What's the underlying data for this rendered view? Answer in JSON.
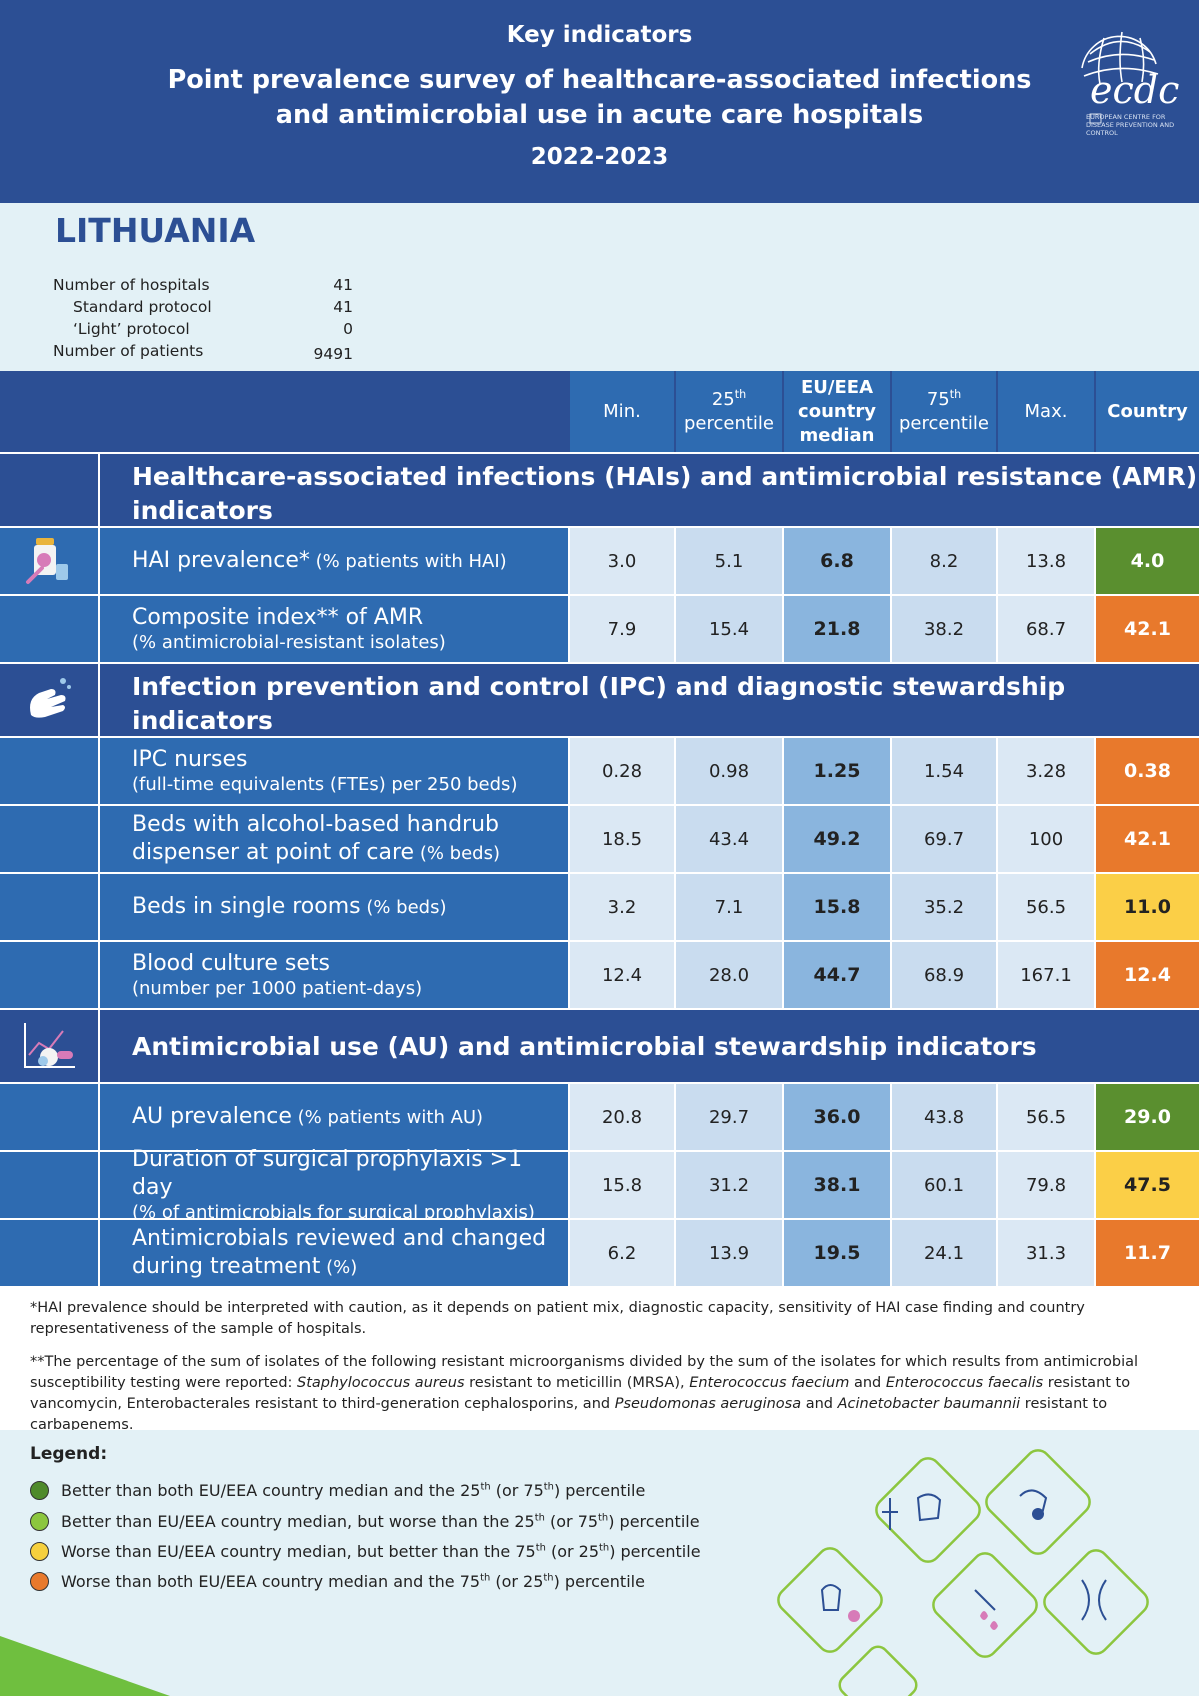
{
  "header": {
    "kicker": "Key indicators",
    "title_line1": "Point prevalence survey of healthcare-associated infections",
    "title_line2": "and antimicrobial use in acute care hospitals",
    "years": "2022-2023",
    "logo_text": "ecdc",
    "logo_sub": "EUROPEAN CENTRE FOR DISEASE PREVENTION AND CONTROL"
  },
  "country": {
    "name": "LITHUANIA",
    "stats": [
      {
        "label": "Number of hospitals",
        "value": "41"
      },
      {
        "label": "Standard protocol",
        "value": "41"
      },
      {
        "label": "‘Light’ protocol",
        "value": "0"
      },
      {
        "label": "Number of patients",
        "value": "9491"
      }
    ]
  },
  "table_header": {
    "min": "Min.",
    "p25_num": "25",
    "p25_sup": "th",
    "p25_word": "percentile",
    "median": "EU/EEA country median",
    "p75_num": "75",
    "p75_sup": "th",
    "p75_word": "percentile",
    "max": "Max.",
    "country": "Country"
  },
  "sections": {
    "hai": "Healthcare-associated infections (HAIs) and antimicrobial resistance (AMR) indicators",
    "ipc": "Infection prevention and control (IPC) and diagnostic stewardship indicators",
    "au": "Antimicrobial use (AU) and antimicrobial stewardship indicators"
  },
  "rows": {
    "hai_prev": {
      "label": "HAI prevalence*",
      "unit": " (% patients with HAI)",
      "min": "3.0",
      "p25": "5.1",
      "median": "6.8",
      "p75": "8.2",
      "max": "13.8",
      "country": "4.0",
      "status": "better-both"
    },
    "amr": {
      "label": "Composite index** of AMR",
      "unit": "(% antimicrobial-resistant isolates)",
      "min": "7.9",
      "p25": "15.4",
      "median": "21.8",
      "p75": "38.2",
      "max": "68.7",
      "country": "42.1",
      "status": "worse-both"
    },
    "ipc_nurses": {
      "label": "IPC nurses",
      "unit": "(full-time equivalents (FTEs) per 250 beds)",
      "min": "0.28",
      "p25": "0.98",
      "median": "1.25",
      "p75": "1.54",
      "max": "3.28",
      "country": "0.38",
      "status": "worse-both"
    },
    "handrub": {
      "label": "Beds with alcohol-based handrub",
      "label2": "dispenser at point of care",
      "unit": " (% beds)",
      "min": "18.5",
      "p25": "43.4",
      "median": "49.2",
      "p75": "69.7",
      "max": "100",
      "country": "42.1",
      "status": "worse-both"
    },
    "single_rooms": {
      "label": "Beds in single rooms",
      "unit": " (% beds)",
      "min": "3.2",
      "p25": "7.1",
      "median": "15.8",
      "p75": "35.2",
      "max": "56.5",
      "country": "11.0",
      "status": "worse-median"
    },
    "blood_culture": {
      "label": "Blood culture sets",
      "unit": "(number per 1000 patient-days)",
      "min": "12.4",
      "p25": "28.0",
      "median": "44.7",
      "p75": "68.9",
      "max": "167.1",
      "country": "12.4",
      "status": "worse-both"
    },
    "au_prev": {
      "label": "AU prevalence",
      "unit": " (% patients with AU)",
      "min": "20.8",
      "p25": "29.7",
      "median": "36.0",
      "p75": "43.8",
      "max": "56.5",
      "country": "29.0",
      "status": "better-both"
    },
    "surg_proph": {
      "label": "Duration of surgical prophylaxis >1 day",
      "unit": "(% of antimicrobials for surgical prophylaxis)",
      "min": "15.8",
      "p25": "31.2",
      "median": "38.1",
      "p75": "60.1",
      "max": "79.8",
      "country": "47.5",
      "status": "worse-median"
    },
    "reviewed": {
      "label": "Antimicrobials reviewed and changed",
      "label2": "during treatment",
      "unit": " (%)",
      "min": "6.2",
      "p25": "13.9",
      "median": "19.5",
      "p75": "24.1",
      "max": "31.3",
      "country": "11.7",
      "status": "worse-both"
    }
  },
  "footnotes": {
    "note1": "*HAI prevalence should be interpreted with caution, as it depends on patient mix, diagnostic capacity, sensitivity of HAI case finding and country representativeness of the sample of hospitals.",
    "note2_a": "**The percentage of the sum of isolates of the following resistant microorganisms divided by the sum of the isolates for which results from antimicrobial susceptibility testing were reported: ",
    "note2_i1": "Staphylococcus aureus",
    "note2_b": " resistant to meticillin (MRSA), ",
    "note2_i2": "Enterococcus faecium",
    "note2_c": " and ",
    "note2_i3": "Enterococcus faecalis",
    "note2_d": " resistant to vancomycin, Enterobacterales resistant to third-generation cephalosporins, and ",
    "note2_i4": "Pseudomonas aeruginosa",
    "note2_e": " and ",
    "note2_i5": "Acinetobacter baumannii",
    "note2_f": " resistant to carbapenems."
  },
  "legend": {
    "title": "Legend:",
    "items": [
      {
        "a": "Better than both EU/EEA country median and the 25",
        "s1": "th",
        "b": " (or 75",
        "s2": "th",
        "c": ") percentile",
        "color": "#4f8a2b"
      },
      {
        "a": "Better than EU/EEA country median, but worse than the 25",
        "s1": "th",
        "b": " (or 75",
        "s2": "th",
        "c": ") percentile",
        "color": "#8cc63f"
      },
      {
        "a": "Worse than EU/EEA country median, but better than the 75",
        "s1": "th",
        "b": " (or 25",
        "s2": "th",
        "c": ") percentile",
        "color": "#f6d03e"
      },
      {
        "a": "Worse than both EU/EEA country median and the 75",
        "s1": "th",
        "b": " (or 25",
        "s2": "th",
        "c": ") percentile",
        "color": "#e8792c"
      }
    ]
  },
  "colors": {
    "header_blue": "#2c4f94",
    "row_blue": "#2e6bb1",
    "better_both": "#5a8f2f",
    "worse_median": "#fbcf47",
    "worse_both": "#e8792c",
    "light_bg": "#e3f1f6"
  }
}
